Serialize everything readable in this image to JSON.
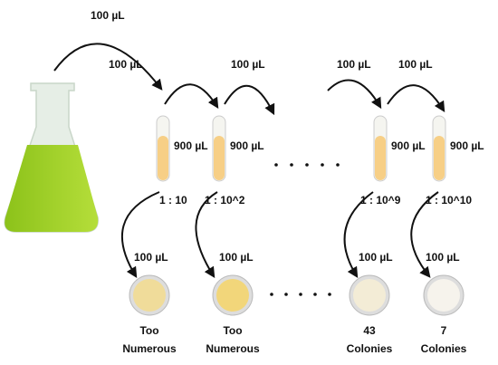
{
  "flask_transfer": "100 µL",
  "transfers": [
    "100 µL",
    "100 µL",
    "100 µL",
    "100 µL"
  ],
  "tubes": [
    {
      "diluent": "900 µL",
      "dilution": "1 : 10",
      "plate_transfer": "100 µL",
      "result": [
        "Too",
        "Numerous"
      ]
    },
    {
      "diluent": "900 µL",
      "dilution": "1 : 10^2",
      "plate_transfer": "100 µL",
      "result": [
        "Too",
        "Numerous"
      ]
    },
    {
      "diluent": "900 µL",
      "dilution": "1 : 10^9",
      "plate_transfer": "100 µL",
      "result": [
        "43",
        "Colonies"
      ]
    },
    {
      "diluent": "900 µL",
      "dilution": "1 : 10^10",
      "plate_transfer": "100 µL",
      "result": [
        "7",
        "Colonies"
      ]
    }
  ]
}
